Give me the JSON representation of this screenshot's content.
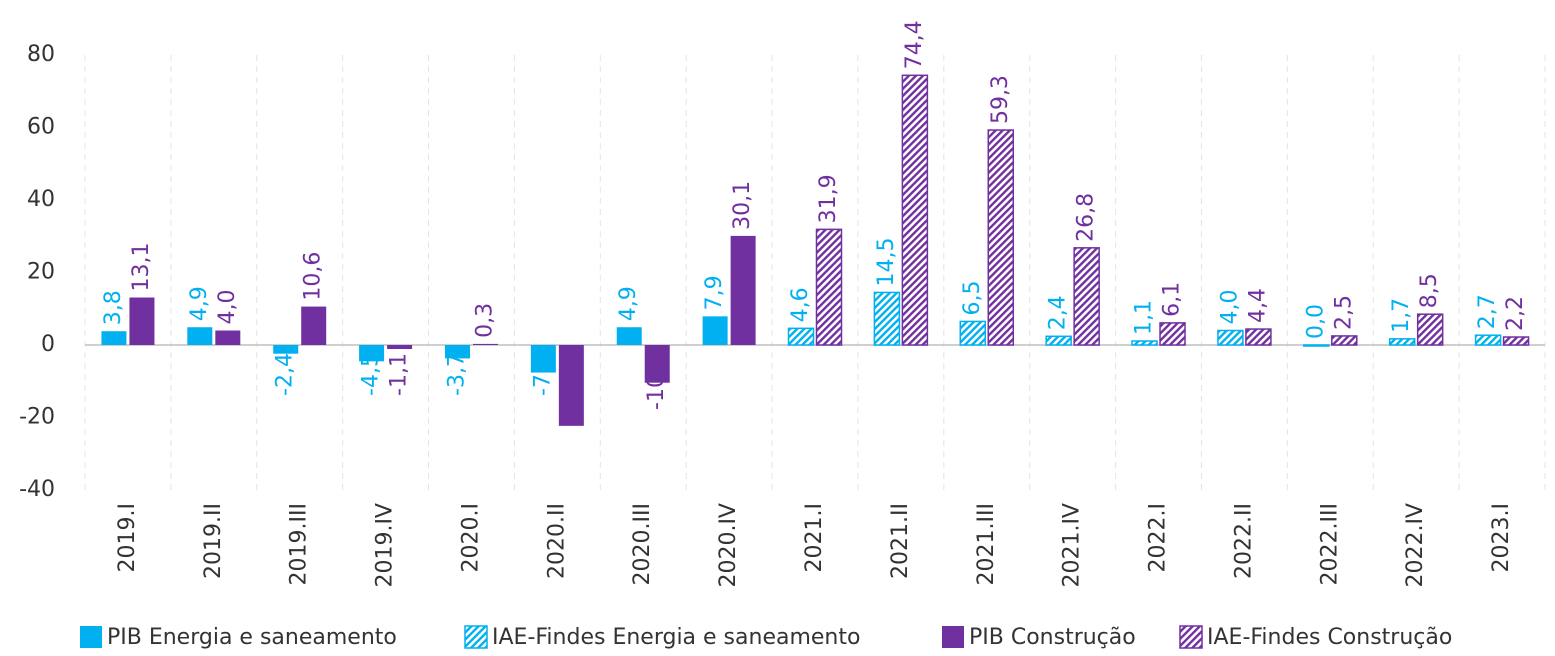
{
  "chart_data": {
    "type": "bar",
    "categories": [
      "2019.I",
      "2019.II",
      "2019.III",
      "2019.IV",
      "2020.I",
      "2020.II",
      "2020.III",
      "2020.IV",
      "2021.I",
      "2021.II",
      "2021.III",
      "2021.IV",
      "2022.I",
      "2022.II",
      "2022.III",
      "2022.IV",
      "2023.I"
    ],
    "series": [
      {
        "name": "PIB Energia e saneamento",
        "color": "#00b0f0",
        "hatch": false,
        "values": [
          3.8,
          4.9,
          -2.4,
          -4.5,
          -3.7,
          -7.6,
          4.9,
          7.9,
          null,
          null,
          null,
          null,
          null,
          null,
          null,
          null,
          null
        ],
        "value_labels": [
          "3,8",
          "4,9",
          "-2,4",
          "-4,5",
          "-3,7",
          "-7,6",
          "4,9",
          "7,9",
          null,
          null,
          null,
          null,
          null,
          null,
          null,
          null,
          null
        ]
      },
      {
        "name": "IAE-Findes Energia e saneamento",
        "color": "#00b0f0",
        "hatch": true,
        "values": [
          null,
          null,
          null,
          null,
          null,
          null,
          null,
          null,
          4.6,
          14.5,
          6.5,
          2.4,
          1.1,
          4.0,
          0.0,
          1.7,
          2.7
        ],
        "value_labels": [
          null,
          null,
          null,
          null,
          null,
          null,
          null,
          null,
          "4,6",
          "14,5",
          "6,5",
          "2,4",
          "1,1",
          "4,0",
          "0,0",
          "1,7",
          "2,7"
        ]
      },
      {
        "name": "PIB Construção",
        "color": "#7030a0",
        "hatch": false,
        "values": [
          13.1,
          4.0,
          10.6,
          -1.1,
          0.3,
          -22.3,
          -10.4,
          30.1,
          null,
          null,
          null,
          null,
          null,
          null,
          null,
          null,
          null
        ],
        "value_labels": [
          "13,1",
          "4,0",
          "10,6",
          "-1,1",
          "0,3",
          "-22,3",
          "-10,4",
          "30,1",
          null,
          null,
          null,
          null,
          null,
          null,
          null,
          null,
          null
        ]
      },
      {
        "name": "IAE-Findes Construção",
        "color": "#7030a0",
        "hatch": true,
        "values": [
          null,
          null,
          null,
          null,
          null,
          null,
          null,
          null,
          31.9,
          74.4,
          59.3,
          26.8,
          6.1,
          4.4,
          2.5,
          8.5,
          2.2
        ],
        "value_labels": [
          null,
          null,
          null,
          null,
          null,
          null,
          null,
          null,
          "31,9",
          "74,4",
          "59,3",
          "26,8",
          "6,1",
          "4,4",
          "2,5",
          "8,5",
          "2,2"
        ]
      }
    ],
    "ylim": [
      -40,
      80
    ],
    "yticks": [
      -40,
      -20,
      0,
      20,
      40,
      60,
      80
    ],
    "grid": true,
    "legend": "bottom"
  }
}
